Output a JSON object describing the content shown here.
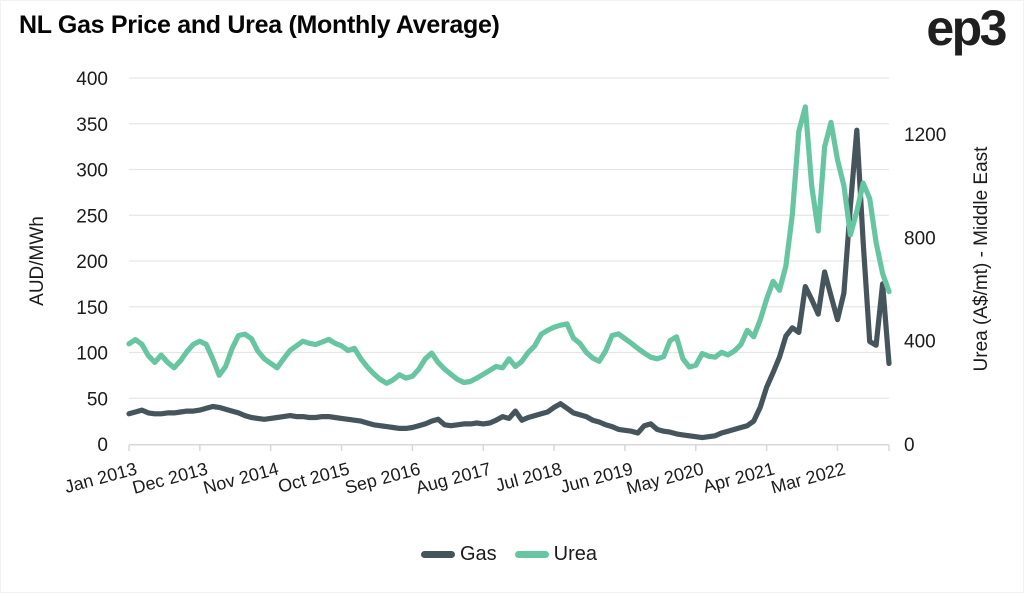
{
  "header": {
    "title": "NL Gas Price and Urea (Monthly Average)",
    "logo": "ep3"
  },
  "chart_data": {
    "type": "line",
    "title": "NL Gas Price and Urea (Monthly Average)",
    "x_interval": "monthly",
    "x_start": "Jan 2013",
    "x_end": "Nov 2022",
    "x_tick_labels": [
      "Jan 2013",
      "Dec 2013",
      "Nov 2014",
      "Oct 2015",
      "Sep 2016",
      "Aug 2017",
      "Jul 2018",
      "Jun 2019",
      "May 2020",
      "Apr 2021",
      "Mar 2022"
    ],
    "x_tick_month_step": 11,
    "grid": "horizontal",
    "legend_position": "bottom-center",
    "left_axis": {
      "label": "AUD/MWh",
      "ticks": [
        0,
        50,
        100,
        150,
        200,
        250,
        300,
        350,
        400
      ],
      "range": [
        0,
        400
      ]
    },
    "right_axis": {
      "label": "Urea (A$/mt) - Middle East",
      "ticks": [
        0,
        400,
        800,
        1200
      ],
      "range": [
        0,
        1200
      ]
    },
    "series": [
      {
        "name": "Gas",
        "axis": "left",
        "color": "#46555c",
        "values": [
          33,
          35,
          37,
          34,
          33,
          33,
          34,
          34,
          35,
          36,
          36,
          37,
          39,
          41,
          40,
          38,
          36,
          34,
          31,
          29,
          28,
          27,
          28,
          29,
          30,
          31,
          30,
          30,
          29,
          29,
          30,
          30,
          29,
          28,
          27,
          26,
          25,
          23,
          21,
          20,
          19,
          18,
          17,
          17,
          18,
          20,
          22,
          25,
          27,
          21,
          20,
          21,
          22,
          22,
          23,
          22,
          23,
          26,
          30,
          28,
          36,
          26,
          29,
          31,
          33,
          35,
          40,
          44,
          39,
          34,
          32,
          30,
          26,
          24,
          21,
          19,
          16,
          15,
          14,
          12,
          20,
          22,
          16,
          14,
          13,
          11,
          10,
          9,
          8,
          7,
          8,
          9,
          12,
          14,
          16,
          18,
          20,
          25,
          40,
          62,
          78,
          95,
          118,
          127,
          122,
          172,
          158,
          142,
          188,
          162,
          136,
          165,
          260,
          343,
          220,
          112,
          108,
          175,
          88
        ]
      },
      {
        "name": "Urea",
        "axis": "right",
        "color": "#68c5a2",
        "values": [
          388,
          404,
          386,
          342,
          316,
          344,
          316,
          295,
          322,
          358,
          386,
          398,
          385,
          330,
          266,
          300,
          370,
          420,
          425,
          408,
          360,
          330,
          312,
          295,
          330,
          362,
          380,
          398,
          390,
          385,
          395,
          405,
          390,
          380,
          362,
          370,
          330,
          298,
          272,
          250,
          235,
          248,
          268,
          255,
          262,
          290,
          330,
          352,
          315,
          290,
          270,
          250,
          238,
          242,
          255,
          270,
          285,
          300,
          295,
          330,
          300,
          320,
          355,
          380,
          425,
          440,
          452,
          460,
          465,
          410,
          390,
          355,
          333,
          320,
          360,
          420,
          426,
          408,
          390,
          370,
          352,
          336,
          330,
          338,
          400,
          415,
          330,
          298,
          305,
          350,
          340,
          336,
          355,
          345,
          360,
          385,
          440,
          415,
          480,
          560,
          630,
          595,
          690,
          890,
          1210,
          1305,
          1000,
          825,
          1150,
          1245,
          1100,
          1000,
          810,
          900,
          1010,
          950,
          780,
          660,
          590
        ]
      }
    ]
  }
}
